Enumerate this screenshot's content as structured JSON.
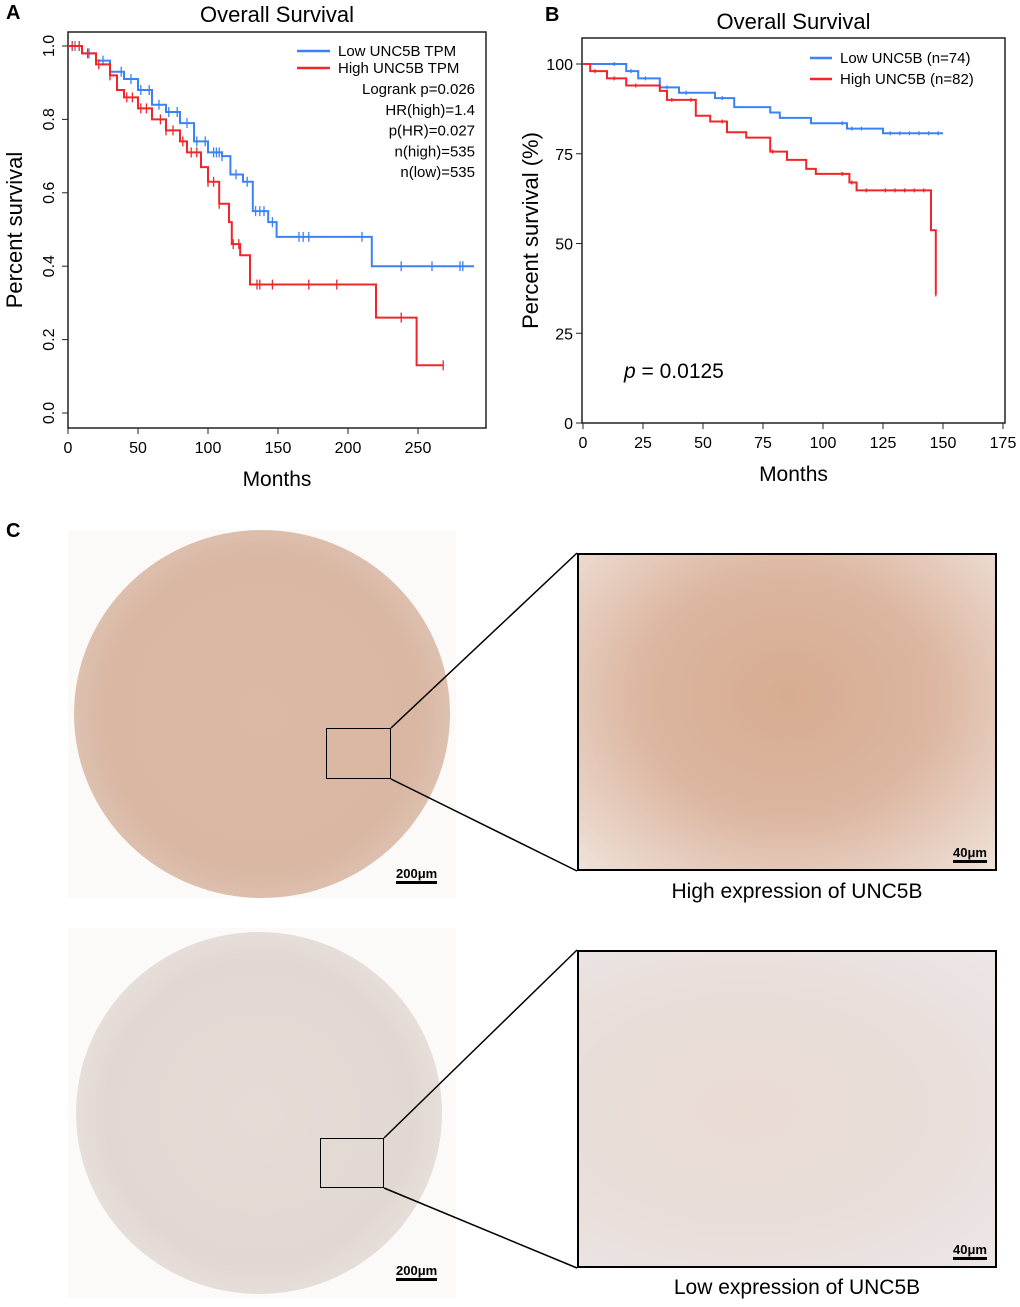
{
  "panels": {
    "a": "A",
    "b": "B",
    "c": "C"
  },
  "chart_data": [
    {
      "type": "line",
      "subtype": "kaplan-meier",
      "title": "Overall Survival",
      "xlabel": "Months",
      "ylabel": "Percent survival",
      "xlim": [
        0,
        290
      ],
      "ylim": [
        0,
        1
      ],
      "xticks": [
        "0",
        "50",
        "100",
        "150",
        "200",
        "250"
      ],
      "yticks": [
        "0.0",
        "0.2",
        "0.4",
        "0.6",
        "0.8",
        "1.0"
      ],
      "legend_position": "top-right",
      "stats": [
        "Logrank p=0.026",
        "HR(high)=1.4",
        "p(HR)=0.027",
        "n(high)=535",
        "n(low)=535"
      ],
      "series": [
        {
          "name": "Low UNC5B TPM",
          "color": "#3b82f6",
          "points": [
            [
              0,
              1
            ],
            [
              10,
              0.98
            ],
            [
              20,
              0.96
            ],
            [
              30,
              0.93
            ],
            [
              40,
              0.91
            ],
            [
              50,
              0.88
            ],
            [
              60,
              0.84
            ],
            [
              70,
              0.82
            ],
            [
              80,
              0.79
            ],
            [
              90,
              0.74
            ],
            [
              100,
              0.71
            ],
            [
              110,
              0.7
            ],
            [
              116,
              0.65
            ],
            [
              125,
              0.63
            ],
            [
              132,
              0.55
            ],
            [
              143,
              0.52
            ],
            [
              149,
              0.48
            ],
            [
              217,
              0.4
            ],
            [
              290,
              0.4
            ]
          ],
          "censor": [
            5,
            15,
            25,
            38,
            45,
            52,
            58,
            65,
            72,
            78,
            85,
            92,
            98,
            104,
            106,
            108,
            110,
            120,
            128,
            134,
            137,
            140,
            146,
            165,
            168,
            172,
            210,
            238,
            260,
            280,
            282
          ]
        },
        {
          "name": "High UNC5B TPM",
          "color": "#f0262b",
          "points": [
            [
              0,
              1
            ],
            [
              10,
              0.98
            ],
            [
              20,
              0.95
            ],
            [
              30,
              0.92
            ],
            [
              35,
              0.88
            ],
            [
              40,
              0.86
            ],
            [
              50,
              0.83
            ],
            [
              60,
              0.8
            ],
            [
              70,
              0.77
            ],
            [
              80,
              0.74
            ],
            [
              85,
              0.71
            ],
            [
              95,
              0.67
            ],
            [
              100,
              0.63
            ],
            [
              108,
              0.57
            ],
            [
              115,
              0.52
            ],
            [
              117,
              0.46
            ],
            [
              123,
              0.43
            ],
            [
              130,
              0.35
            ],
            [
              220,
              0.26
            ],
            [
              249,
              0.13
            ],
            [
              268,
              0.13
            ]
          ],
          "censor": [
            3,
            8,
            14,
            22,
            30,
            42,
            46,
            52,
            56,
            66,
            70,
            75,
            82,
            88,
            92,
            100,
            104,
            108,
            118,
            122,
            135,
            137,
            146,
            172,
            192,
            238,
            268
          ]
        }
      ]
    },
    {
      "type": "line",
      "subtype": "kaplan-meier",
      "title": "Overall Survival",
      "xlabel": "Months",
      "ylabel": "Percent survival (%)",
      "xlim": [
        0,
        175
      ],
      "ylim": [
        0,
        100
      ],
      "xticks": [
        "0",
        "25",
        "50",
        "75",
        "100",
        "125",
        "150",
        "175"
      ],
      "yticks": [
        "0",
        "25",
        "50",
        "75",
        "100"
      ],
      "legend_position": "top-right",
      "annotation": {
        "p_label": "p",
        "p_value": "= 0.0125"
      },
      "series": [
        {
          "name": "Low  UNC5B (n=74)",
          "color": "#3b82f6",
          "points": [
            [
              0,
              100
            ],
            [
              18,
              98
            ],
            [
              23,
              96
            ],
            [
              32,
              93.5
            ],
            [
              40,
              92
            ],
            [
              55,
              90.5
            ],
            [
              63,
              88
            ],
            [
              78,
              86.5
            ],
            [
              82,
              85
            ],
            [
              95,
              83.5
            ],
            [
              110,
              82
            ],
            [
              125,
              80.7
            ],
            [
              150,
              80.7
            ]
          ],
          "censor": [
            13,
            20,
            26,
            35,
            43,
            58,
            108,
            112,
            116,
            128,
            132,
            136,
            140,
            144,
            148
          ]
        },
        {
          "name": "High UNC5B (n=82)",
          "color": "#f0262b",
          "points": [
            [
              0,
              100
            ],
            [
              3,
              98
            ],
            [
              10,
              96
            ],
            [
              18,
              94
            ],
            [
              32,
              92.5
            ],
            [
              35,
              90
            ],
            [
              47,
              85.6
            ],
            [
              53,
              84
            ],
            [
              60,
              81
            ],
            [
              68,
              79.5
            ],
            [
              78,
              75.6
            ],
            [
              85,
              73.3
            ],
            [
              93,
              70.8
            ],
            [
              97,
              69.4
            ],
            [
              111,
              67
            ],
            [
              114,
              64.8
            ],
            [
              145,
              53.7
            ],
            [
              147,
              35.8
            ]
          ],
          "censor": [
            5,
            13,
            22,
            37,
            45,
            58,
            79,
            108,
            112,
            118,
            126,
            130,
            134,
            138,
            142,
            147
          ]
        }
      ]
    }
  ],
  "ihc": {
    "scale_large": "200μm",
    "scale_small": "40μm",
    "high_caption": "High expression of UNC5B",
    "low_caption": "Low expression of UNC5B"
  }
}
